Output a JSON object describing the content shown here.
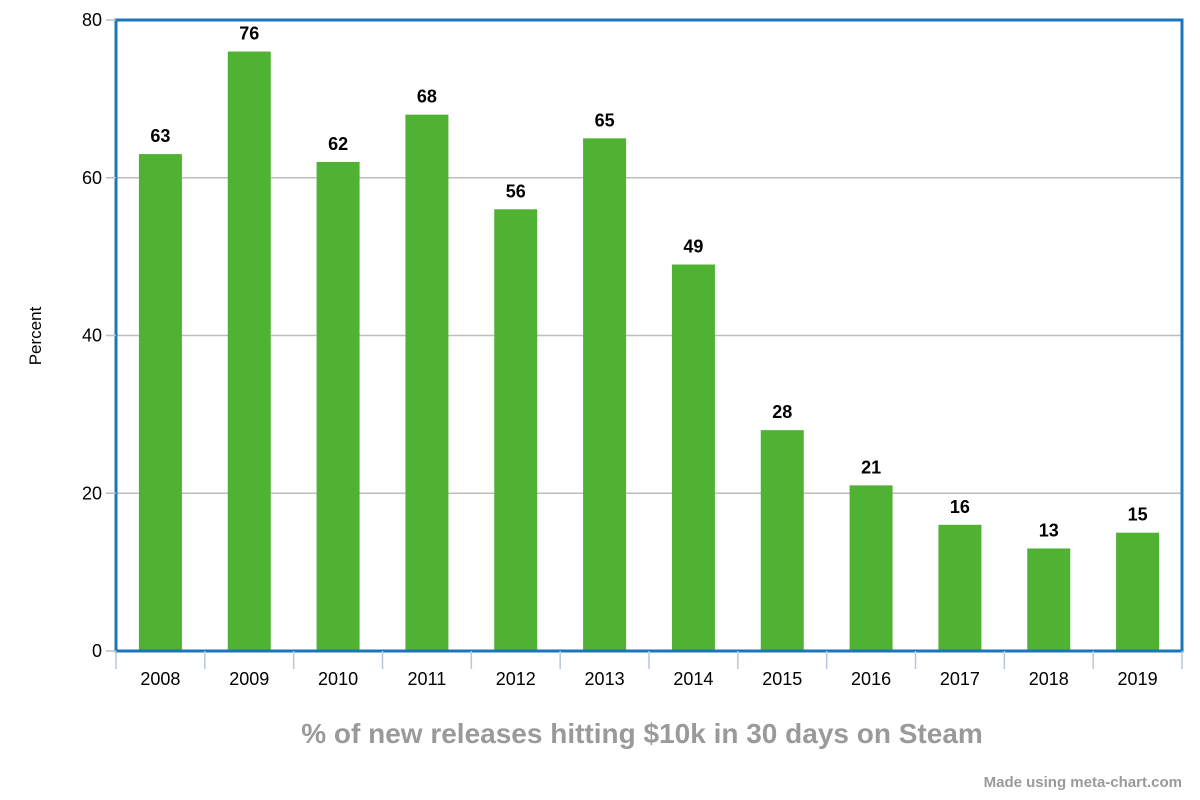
{
  "chart_data": {
    "type": "bar",
    "title": "% of new releases hitting $10k in 30 days on Steam",
    "xlabel": "",
    "ylabel": "Percent",
    "categories": [
      "2008",
      "2009",
      "2010",
      "2011",
      "2012",
      "2013",
      "2014",
      "2015",
      "2016",
      "2017",
      "2018",
      "2019"
    ],
    "values": [
      63,
      76,
      62,
      68,
      56,
      65,
      49,
      28,
      21,
      16,
      13,
      15
    ],
    "data_labels": [
      "63",
      "76",
      "62",
      "68",
      "56",
      "65",
      "49",
      "28",
      "21",
      "16",
      "13",
      "15"
    ],
    "ylim": [
      0,
      80
    ],
    "yticks": [
      0,
      20,
      40,
      60,
      80
    ],
    "grid": true,
    "legend": "none"
  },
  "colors": {
    "bar": "#4fb233",
    "frame": "#1b75bb",
    "grid": "#bdbdbd",
    "title": "#9a9a9a"
  },
  "credit": "Made using meta-chart.com"
}
